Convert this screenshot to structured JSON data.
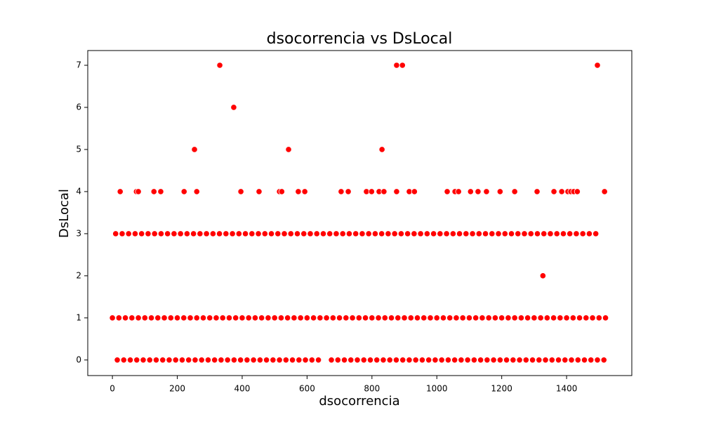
{
  "chart_data": {
    "type": "scatter",
    "title": "dsocorrencia vs DsLocal",
    "x_label": "dsocorrencia",
    "y_label": "DsLocal",
    "xlim": [
      -76,
      1601
    ],
    "ylim": [
      -0.37,
      7.35
    ],
    "xticks": [
      0,
      200,
      400,
      600,
      800,
      1000,
      1200,
      1400
    ],
    "yticks": [
      0,
      1,
      2,
      3,
      4,
      5,
      6,
      7
    ],
    "grid": false,
    "series": [
      {
        "color": "#ff0000",
        "x": [
          0,
          20,
          40,
          60,
          80,
          100,
          120,
          140,
          160,
          180,
          200,
          220,
          240,
          260,
          280,
          300,
          320,
          340,
          360,
          380,
          400,
          420,
          440,
          460,
          480,
          500,
          520,
          540,
          560,
          580,
          600,
          620,
          640,
          660,
          680,
          700,
          720,
          740,
          760,
          780,
          800,
          820,
          840,
          860,
          880,
          900,
          920,
          940,
          960,
          980,
          1000,
          1020,
          1040,
          1060,
          1080,
          1100,
          1120,
          1140,
          1160,
          1180,
          1200,
          1220,
          1240,
          1260,
          1280,
          1300,
          1320,
          1340,
          1360,
          1380,
          1400,
          1420,
          1440,
          1460,
          1480,
          1500,
          1520
        ],
        "values": [
          1,
          1,
          1,
          1,
          1,
          1,
          1,
          1,
          1,
          1,
          1,
          1,
          1,
          1,
          1,
          1,
          1,
          1,
          1,
          1,
          1,
          1,
          1,
          1,
          1,
          1,
          1,
          1,
          1,
          1,
          1,
          1,
          1,
          1,
          1,
          1,
          1,
          1,
          1,
          1,
          1,
          1,
          1,
          1,
          1,
          1,
          1,
          1,
          1,
          1,
          1,
          1,
          1,
          1,
          1,
          1,
          1,
          1,
          1,
          1,
          1,
          1,
          1,
          1,
          1,
          1,
          1,
          1,
          1,
          1,
          1,
          1,
          1,
          1,
          1,
          1,
          1
        ]
      },
      {
        "color": "#ff0000",
        "x": [
          10,
          30,
          50,
          70,
          90,
          110,
          130,
          150,
          170,
          190,
          210,
          230,
          250,
          270,
          290,
          310,
          330,
          350,
          370,
          390,
          410,
          430,
          450,
          470,
          490,
          510,
          530,
          550,
          570,
          590,
          610,
          630,
          650,
          670,
          690,
          710,
          730,
          750,
          770,
          790,
          810,
          830,
          850,
          870,
          890,
          910,
          930,
          950,
          970,
          990,
          1010,
          1030,
          1050,
          1070,
          1090,
          1110,
          1130,
          1150,
          1170,
          1190,
          1210,
          1230,
          1250,
          1270,
          1290,
          1310,
          1330,
          1350,
          1370,
          1390,
          1410,
          1430,
          1450,
          1470,
          1490
        ],
        "values": [
          3,
          3,
          3,
          3,
          3,
          3,
          3,
          3,
          3,
          3,
          3,
          3,
          3,
          3,
          3,
          3,
          3,
          3,
          3,
          3,
          3,
          3,
          3,
          3,
          3,
          3,
          3,
          3,
          3,
          3,
          3,
          3,
          3,
          3,
          3,
          3,
          3,
          3,
          3,
          3,
          3,
          3,
          3,
          3,
          3,
          3,
          3,
          3,
          3,
          3,
          3,
          3,
          3,
          3,
          3,
          3,
          3,
          3,
          3,
          3,
          3,
          3,
          3,
          3,
          3,
          3,
          3,
          3,
          3,
          3,
          3,
          3,
          3,
          3,
          3
        ]
      },
      {
        "color": "#ff0000",
        "x": [
          15,
          35,
          55,
          75,
          95,
          115,
          135,
          155,
          175,
          195,
          215,
          235,
          255,
          275,
          295,
          315,
          335,
          355,
          375,
          395,
          415,
          435,
          455,
          475,
          495,
          515,
          535,
          555,
          575,
          595,
          615,
          635,
          675,
          695,
          715,
          735,
          755,
          775,
          795,
          815,
          835,
          855,
          875,
          895,
          915,
          935,
          955,
          975,
          995,
          1015,
          1035,
          1055,
          1075,
          1095,
          1115,
          1135,
          1155,
          1175,
          1195,
          1215,
          1235,
          1255,
          1275,
          1295,
          1315,
          1335,
          1355,
          1375,
          1395,
          1415,
          1435,
          1455,
          1475,
          1495,
          1515
        ],
        "values": [
          0,
          0,
          0,
          0,
          0,
          0,
          0,
          0,
          0,
          0,
          0,
          0,
          0,
          0,
          0,
          0,
          0,
          0,
          0,
          0,
          0,
          0,
          0,
          0,
          0,
          0,
          0,
          0,
          0,
          0,
          0,
          0,
          0,
          0,
          0,
          0,
          0,
          0,
          0,
          0,
          0,
          0,
          0,
          0,
          0,
          0,
          0,
          0,
          0,
          0,
          0,
          0,
          0,
          0,
          0,
          0,
          0,
          0,
          0,
          0,
          0,
          0,
          0,
          0,
          0,
          0,
          0,
          0,
          0,
          0,
          0,
          0,
          0,
          0,
          0
        ]
      },
      {
        "color": "#ff0000",
        "x": [
          331,
          876,
          894,
          1495,
          374,
          253,
          543,
          831,
          1327,
          24,
          74,
          80,
          128,
          149,
          221,
          260,
          396,
          452,
          515,
          522,
          573,
          593,
          705,
          727,
          783,
          799,
          822,
          837,
          876,
          915,
          931,
          1032,
          1056,
          1067,
          1104,
          1127,
          1153,
          1195,
          1240,
          1309,
          1361,
          1385,
          1404,
          1413,
          1422,
          1433,
          1517
        ],
        "values": [
          7,
          7,
          7,
          7,
          6,
          5,
          5,
          5,
          2,
          4,
          4,
          4,
          4,
          4,
          4,
          4,
          4,
          4,
          4,
          4,
          4,
          4,
          4,
          4,
          4,
          4,
          4,
          4,
          4,
          4,
          4,
          4,
          4,
          4,
          4,
          4,
          4,
          4,
          4,
          4,
          4,
          4,
          4,
          4,
          4,
          4,
          4
        ]
      }
    ]
  }
}
